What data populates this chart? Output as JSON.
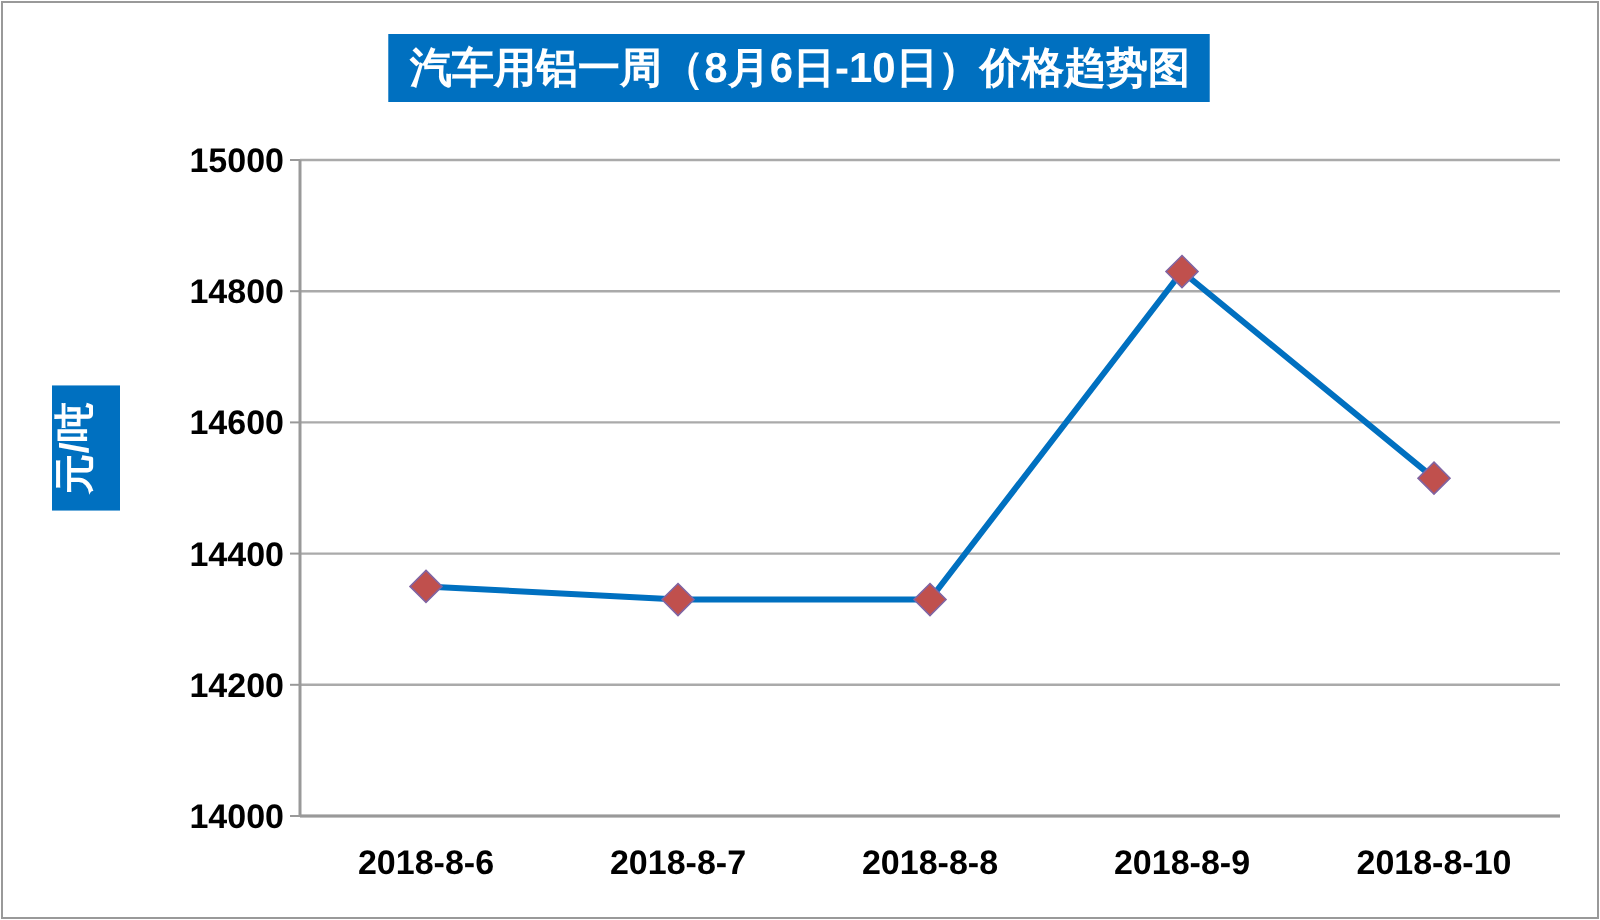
{
  "chart_data": {
    "type": "line",
    "title": "汽车用铝一周（8月6日-10日）价格趋势图",
    "ylabel": "元/吨",
    "categories": [
      "2018-8-6",
      "2018-8-7",
      "2018-8-8",
      "2018-8-9",
      "2018-8-10"
    ],
    "series": [
      {
        "color": "#0070c0",
        "values": [
          14350,
          14330,
          14330,
          14830,
          14515
        ]
      }
    ],
    "ylim": [
      14000,
      15000
    ],
    "yticks": [
      14000,
      14200,
      14400,
      14600,
      14800,
      15000
    ],
    "grid": "y",
    "marker": "diamond",
    "line_style": "solid"
  }
}
